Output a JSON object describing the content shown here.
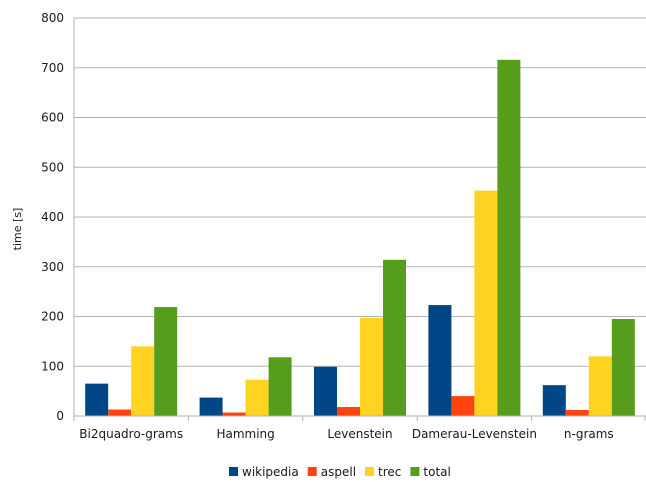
{
  "chart_data": {
    "type": "bar",
    "title": "",
    "xlabel": "",
    "ylabel": "time [s]",
    "ylim": [
      0,
      800
    ],
    "yticks": [
      0,
      100,
      200,
      300,
      400,
      500,
      600,
      700,
      800
    ],
    "grid": "horizontal",
    "legend_position": "bottom",
    "categories": [
      "Bi2quadro-grams",
      "Hamming",
      "Levenstein",
      "Damerau-Levenstein",
      "n-grams"
    ],
    "series": [
      {
        "name": "wikipedia",
        "color": "#004586",
        "values": [
          65,
          37,
          99,
          223,
          62
        ]
      },
      {
        "name": "aspell",
        "color": "#ff420e",
        "values": [
          13,
          7,
          18,
          40,
          12
        ]
      },
      {
        "name": "trec",
        "color": "#ffd320",
        "values": [
          140,
          73,
          197,
          453,
          120
        ]
      },
      {
        "name": "total",
        "color": "#579d1c",
        "values": [
          219,
          118,
          314,
          716,
          195
        ]
      }
    ]
  }
}
